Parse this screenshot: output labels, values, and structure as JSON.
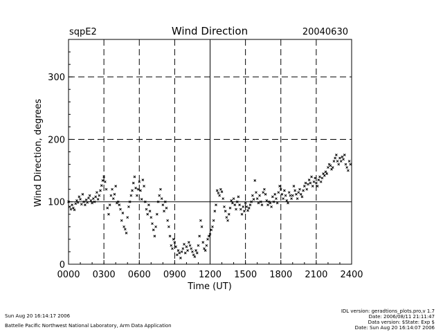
{
  "chart_data": {
    "type": "scatter",
    "site_label": "sqpE2",
    "title": "Wind Direction",
    "date_label": "20040630",
    "xlabel": "Time (UT)",
    "ylabel": "Wind Direction, degrees",
    "xlim": [
      0,
      2400
    ],
    "ylim": [
      0,
      360
    ],
    "x_ticks": [
      "0000",
      "0300",
      "0600",
      "0900",
      "1200",
      "1500",
      "1800",
      "2100",
      "2400"
    ],
    "y_ticks": [
      "0",
      "100",
      "200",
      "300"
    ],
    "grid": true,
    "series": [
      {
        "name": "wind_direction",
        "points": [
          [
            0,
            100
          ],
          [
            10,
            92
          ],
          [
            20,
            88
          ],
          [
            30,
            95
          ],
          [
            40,
            90
          ],
          [
            50,
            87
          ],
          [
            60,
            97
          ],
          [
            70,
            102
          ],
          [
            80,
            99
          ],
          [
            90,
            108
          ],
          [
            100,
            104
          ],
          [
            110,
            96
          ],
          [
            120,
            112
          ],
          [
            130,
            100
          ],
          [
            140,
            95
          ],
          [
            150,
            103
          ],
          [
            160,
            99
          ],
          [
            170,
            106
          ],
          [
            180,
            110
          ],
          [
            190,
            102
          ],
          [
            200,
            98
          ],
          [
            210,
            105
          ],
          [
            220,
            100
          ],
          [
            230,
            108
          ],
          [
            240,
            115
          ],
          [
            250,
            104
          ],
          [
            260,
            110
          ],
          [
            270,
            118
          ],
          [
            280,
            126
          ],
          [
            290,
            134
          ],
          [
            300,
            140
          ],
          [
            310,
            132
          ],
          [
            320,
            120
          ],
          [
            330,
            90
          ],
          [
            340,
            80
          ],
          [
            350,
            95
          ],
          [
            360,
            110
          ],
          [
            370,
            120
          ],
          [
            380,
            105
          ],
          [
            390,
            112
          ],
          [
            400,
            125
          ],
          [
            410,
            98
          ],
          [
            420,
            100
          ],
          [
            430,
            95
          ],
          [
            440,
            88
          ],
          [
            450,
            70
          ],
          [
            460,
            82
          ],
          [
            470,
            60
          ],
          [
            480,
            56
          ],
          [
            490,
            50
          ],
          [
            500,
            75
          ],
          [
            510,
            92
          ],
          [
            520,
            100
          ],
          [
            530,
            110
          ],
          [
            540,
            118
          ],
          [
            550,
            130
          ],
          [
            560,
            140
          ],
          [
            570,
            122
          ],
          [
            580,
            110
          ],
          [
            590,
            120
          ],
          [
            600,
            132
          ],
          [
            610,
            118
          ],
          [
            620,
            104
          ],
          [
            630,
            135
          ],
          [
            640,
            125
          ],
          [
            650,
            100
          ],
          [
            660,
            88
          ],
          [
            670,
            80
          ],
          [
            680,
            95
          ],
          [
            690,
            85
          ],
          [
            700,
            75
          ],
          [
            710,
            65
          ],
          [
            720,
            55
          ],
          [
            730,
            45
          ],
          [
            740,
            60
          ],
          [
            750,
            80
          ],
          [
            760,
            100
          ],
          [
            770,
            110
          ],
          [
            780,
            120
          ],
          [
            790,
            105
          ],
          [
            800,
            95
          ],
          [
            810,
            85
          ],
          [
            820,
            100
          ],
          [
            830,
            90
          ],
          [
            840,
            70
          ],
          [
            850,
            60
          ],
          [
            860,
            45
          ],
          [
            870,
            30
          ],
          [
            880,
            25
          ],
          [
            890,
            40
          ],
          [
            900,
            35
          ],
          [
            910,
            28
          ],
          [
            920,
            15
          ],
          [
            930,
            22
          ],
          [
            940,
            18
          ],
          [
            950,
            10
          ],
          [
            960,
            20
          ],
          [
            970,
            25
          ],
          [
            980,
            32
          ],
          [
            990,
            18
          ],
          [
            1000,
            28
          ],
          [
            1010,
            22
          ],
          [
            1020,
            35
          ],
          [
            1030,
            30
          ],
          [
            1040,
            25
          ],
          [
            1050,
            20
          ],
          [
            1060,
            15
          ],
          [
            1070,
            12
          ],
          [
            1080,
            22
          ],
          [
            1090,
            18
          ],
          [
            1100,
            30
          ],
          [
            1110,
            45
          ],
          [
            1120,
            70
          ],
          [
            1130,
            60
          ],
          [
            1140,
            35
          ],
          [
            1150,
            25
          ],
          [
            1160,
            22
          ],
          [
            1170,
            30
          ],
          [
            1180,
            40
          ],
          [
            1190,
            45
          ],
          [
            1200,
            48
          ],
          [
            1210,
            55
          ],
          [
            1220,
            60
          ],
          [
            1230,
            70
          ],
          [
            1240,
            85
          ],
          [
            1250,
            95
          ],
          [
            1260,
            118
          ],
          [
            1270,
            114
          ],
          [
            1280,
            110
          ],
          [
            1290,
            120
          ],
          [
            1300,
            116
          ],
          [
            1310,
            105
          ],
          [
            1320,
            92
          ],
          [
            1330,
            85
          ],
          [
            1340,
            75
          ],
          [
            1350,
            70
          ],
          [
            1360,
            80
          ],
          [
            1370,
            90
          ],
          [
            1380,
            102
          ],
          [
            1390,
            98
          ],
          [
            1400,
            105
          ],
          [
            1410,
            95
          ],
          [
            1420,
            88
          ],
          [
            1430,
            100
          ],
          [
            1440,
            108
          ],
          [
            1450,
            95
          ],
          [
            1460,
            88
          ],
          [
            1470,
            80
          ],
          [
            1480,
            92
          ],
          [
            1490,
            85
          ],
          [
            1500,
            98
          ],
          [
            1510,
            92
          ],
          [
            1520,
            86
          ],
          [
            1530,
            90
          ],
          [
            1540,
            95
          ],
          [
            1550,
            100
          ],
          [
            1560,
            110
          ],
          [
            1570,
            104
          ],
          [
            1580,
            134
          ],
          [
            1590,
            115
          ],
          [
            1600,
            105
          ],
          [
            1610,
            98
          ],
          [
            1620,
            110
          ],
          [
            1630,
            100
          ],
          [
            1640,
            95
          ],
          [
            1650,
            115
          ],
          [
            1660,
            120
          ],
          [
            1670,
            112
          ],
          [
            1680,
            102
          ],
          [
            1690,
            95
          ],
          [
            1700,
            100
          ],
          [
            1710,
            98
          ],
          [
            1720,
            92
          ],
          [
            1730,
            108
          ],
          [
            1740,
            100
          ],
          [
            1750,
            112
          ],
          [
            1760,
            105
          ],
          [
            1770,
            98
          ],
          [
            1780,
            115
          ],
          [
            1790,
            125
          ],
          [
            1800,
            120
          ],
          [
            1810,
            112
          ],
          [
            1820,
            105
          ],
          [
            1830,
            118
          ],
          [
            1840,
            110
          ],
          [
            1850,
            102
          ],
          [
            1860,
            98
          ],
          [
            1870,
            115
          ],
          [
            1880,
            110
          ],
          [
            1890,
            105
          ],
          [
            1900,
            110
          ],
          [
            1910,
            125
          ],
          [
            1920,
            118
          ],
          [
            1930,
            112
          ],
          [
            1940,
            105
          ],
          [
            1950,
            115
          ],
          [
            1960,
            120
          ],
          [
            1970,
            112
          ],
          [
            1980,
            108
          ],
          [
            1990,
            118
          ],
          [
            2000,
            125
          ],
          [
            2010,
            130
          ],
          [
            2020,
            120
          ],
          [
            2030,
            128
          ],
          [
            2040,
            135
          ],
          [
            2050,
            130
          ],
          [
            2060,
            140
          ],
          [
            2070,
            125
          ],
          [
            2080,
            132
          ],
          [
            2090,
            138
          ],
          [
            2100,
            130
          ],
          [
            2110,
            125
          ],
          [
            2120,
            135
          ],
          [
            2130,
            140
          ],
          [
            2140,
            132
          ],
          [
            2150,
            138
          ],
          [
            2160,
            145
          ],
          [
            2170,
            142
          ],
          [
            2180,
            148
          ],
          [
            2190,
            145
          ],
          [
            2200,
            155
          ],
          [
            2210,
            160
          ],
          [
            2220,
            158
          ],
          [
            2230,
            152
          ],
          [
            2240,
            155
          ],
          [
            2250,
            165
          ],
          [
            2260,
            170
          ],
          [
            2270,
            175
          ],
          [
            2280,
            165
          ],
          [
            2290,
            160
          ],
          [
            2300,
            170
          ],
          [
            2310,
            165
          ],
          [
            2320,
            172
          ],
          [
            2330,
            168
          ],
          [
            2340,
            175
          ],
          [
            2350,
            160
          ],
          [
            2360,
            155
          ],
          [
            2370,
            150
          ],
          [
            2380,
            165
          ],
          [
            2390,
            160
          ]
        ]
      }
    ]
  },
  "footer": {
    "left_line1": "Sun Aug 20 16:14:17 2006",
    "left_line2": "Battelle Pacific Northwest National Laboratory, Arm Data Application",
    "right_line1": "IDL version: geradtions_plots.pro,v 1.7",
    "right_line2": "Date: 2006/08/11 21:11:47",
    "right_line3": "Data version: $State: Exp $",
    "right_line4": "Date: Sun Aug 20 16:14:07 2006"
  }
}
